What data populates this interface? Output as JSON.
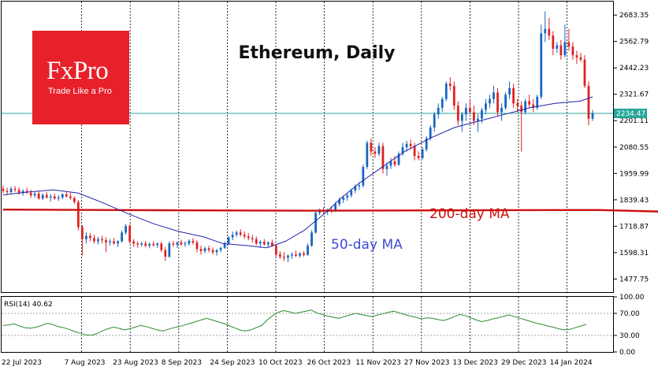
{
  "logo": {
    "word": "FxPro",
    "tagline": "Trade Like a Pro"
  },
  "chart_data": {
    "type": "candlestick",
    "title": "Ethereum, Daily",
    "price_axis": {
      "ticks": [
        "2683.35",
        "2562.79",
        "2442.23",
        "2321.67",
        "2201.11",
        "2080.55",
        "1959.99",
        "1839.43",
        "1718.87",
        "1598.31",
        "1477.75"
      ],
      "ylim": [
        1418,
        2745
      ]
    },
    "current_price_label": "2234.47",
    "x_labels": [
      "22 Jul 2023",
      "7 Aug 2023",
      "23 Aug 2023",
      "8 Sep 2023",
      "24 Sep 2023",
      "10 Oct 2023",
      "26 Oct 2023",
      "11 Nov 2023",
      "27 Nov 2023",
      "13 Dec 2023",
      "29 Dec 2023",
      "14 Jan 2024"
    ],
    "annotations": {
      "ma200": "200-day MA",
      "ma50": "50-day MA"
    },
    "grid": "vertical dashed",
    "colors": {
      "up": "#1565c0",
      "down": "#e02020",
      "ma50": "#2222aa",
      "ma200": "#cc1111",
      "rsi": "#2e8b2e",
      "price_line": "#26a69a"
    },
    "candles": [
      [
        1890,
        1905,
        1870,
        1880
      ],
      [
        1880,
        1895,
        1860,
        1875
      ],
      [
        1875,
        1900,
        1865,
        1890
      ],
      [
        1890,
        1902,
        1875,
        1885
      ],
      [
        1885,
        1898,
        1862,
        1870
      ],
      [
        1870,
        1888,
        1858,
        1880
      ],
      [
        1880,
        1895,
        1866,
        1872
      ],
      [
        1872,
        1885,
        1848,
        1860
      ],
      [
        1860,
        1878,
        1850,
        1868
      ],
      [
        1868,
        1880,
        1840,
        1845
      ],
      [
        1845,
        1870,
        1838,
        1862
      ],
      [
        1862,
        1875,
        1845,
        1850
      ],
      [
        1850,
        1866,
        1832,
        1855
      ],
      [
        1855,
        1868,
        1840,
        1845
      ],
      [
        1845,
        1862,
        1835,
        1850
      ],
      [
        1850,
        1870,
        1842,
        1865
      ],
      [
        1865,
        1878,
        1850,
        1855
      ],
      [
        1855,
        1872,
        1840,
        1848
      ],
      [
        1848,
        1855,
        1820,
        1830
      ],
      [
        1830,
        1838,
        1700,
        1715
      ],
      [
        1715,
        1725,
        1585,
        1660
      ],
      [
        1660,
        1690,
        1640,
        1675
      ],
      [
        1675,
        1688,
        1650,
        1665
      ],
      [
        1665,
        1680,
        1640,
        1650
      ],
      [
        1650,
        1670,
        1635,
        1660
      ],
      [
        1660,
        1675,
        1640,
        1655
      ],
      [
        1655,
        1668,
        1600,
        1645
      ],
      [
        1645,
        1660,
        1630,
        1650
      ],
      [
        1650,
        1665,
        1635,
        1640
      ],
      [
        1640,
        1655,
        1625,
        1650
      ],
      [
        1650,
        1700,
        1645,
        1690
      ],
      [
        1690,
        1730,
        1680,
        1720
      ],
      [
        1720,
        1728,
        1640,
        1650
      ],
      [
        1650,
        1660,
        1625,
        1640
      ],
      [
        1640,
        1650,
        1620,
        1635
      ],
      [
        1635,
        1648,
        1625,
        1640
      ],
      [
        1640,
        1652,
        1622,
        1630
      ],
      [
        1630,
        1645,
        1618,
        1638
      ],
      [
        1638,
        1650,
        1625,
        1632
      ],
      [
        1632,
        1645,
        1620,
        1640
      ],
      [
        1640,
        1648,
        1600,
        1610
      ],
      [
        1610,
        1625,
        1560,
        1580
      ],
      [
        1580,
        1650,
        1575,
        1640
      ],
      [
        1640,
        1652,
        1625,
        1635
      ],
      [
        1635,
        1650,
        1620,
        1645
      ],
      [
        1645,
        1658,
        1630,
        1636
      ],
      [
        1636,
        1650,
        1625,
        1640
      ],
      [
        1640,
        1660,
        1630,
        1652
      ],
      [
        1652,
        1665,
        1635,
        1645
      ],
      [
        1645,
        1655,
        1600,
        1615
      ],
      [
        1615,
        1630,
        1590,
        1605
      ],
      [
        1605,
        1625,
        1595,
        1618
      ],
      [
        1618,
        1630,
        1600,
        1610
      ],
      [
        1610,
        1622,
        1590,
        1600
      ],
      [
        1600,
        1615,
        1585,
        1610
      ],
      [
        1610,
        1625,
        1600,
        1620
      ],
      [
        1620,
        1650,
        1615,
        1640
      ],
      [
        1640,
        1675,
        1632,
        1668
      ],
      [
        1668,
        1695,
        1655,
        1680
      ],
      [
        1680,
        1700,
        1670,
        1690
      ],
      [
        1690,
        1705,
        1672,
        1680
      ],
      [
        1680,
        1695,
        1662,
        1672
      ],
      [
        1672,
        1688,
        1655,
        1665
      ],
      [
        1665,
        1680,
        1645,
        1660
      ],
      [
        1660,
        1672,
        1632,
        1640
      ],
      [
        1640,
        1655,
        1620,
        1648
      ],
      [
        1648,
        1660,
        1630,
        1636
      ],
      [
        1636,
        1650,
        1620,
        1645
      ],
      [
        1645,
        1658,
        1625,
        1630
      ],
      [
        1630,
        1638,
        1580,
        1590
      ],
      [
        1590,
        1605,
        1570,
        1580
      ],
      [
        1580,
        1600,
        1560,
        1575
      ],
      [
        1575,
        1590,
        1555,
        1585
      ],
      [
        1585,
        1600,
        1570,
        1590
      ],
      [
        1590,
        1608,
        1578,
        1584
      ],
      [
        1584,
        1600,
        1575,
        1595
      ],
      [
        1595,
        1605,
        1580,
        1588
      ],
      [
        1588,
        1640,
        1585,
        1630
      ],
      [
        1630,
        1700,
        1625,
        1690
      ],
      [
        1690,
        1790,
        1685,
        1780
      ],
      [
        1780,
        1800,
        1770,
        1792
      ],
      [
        1792,
        1805,
        1775,
        1785
      ],
      [
        1785,
        1800,
        1770,
        1795
      ],
      [
        1795,
        1810,
        1780,
        1790
      ],
      [
        1790,
        1830,
        1785,
        1820
      ],
      [
        1820,
        1850,
        1810,
        1840
      ],
      [
        1840,
        1860,
        1825,
        1850
      ],
      [
        1850,
        1870,
        1835,
        1860
      ],
      [
        1860,
        1890,
        1850,
        1882
      ],
      [
        1882,
        1910,
        1870,
        1900
      ],
      [
        1900,
        1920,
        1885,
        1905
      ],
      [
        1905,
        2000,
        1895,
        1990
      ],
      [
        1990,
        2110,
        1980,
        2100
      ],
      [
        2100,
        2120,
        2040,
        2060
      ],
      [
        2060,
        2080,
        2030,
        2050
      ],
      [
        2050,
        2100,
        2040,
        2085
      ],
      [
        2085,
        2100,
        1960,
        1980
      ],
      [
        1980,
        2010,
        1950,
        1995
      ],
      [
        1995,
        2030,
        1980,
        2015
      ],
      [
        2015,
        2040,
        1990,
        2000
      ],
      [
        2000,
        2060,
        1995,
        2050
      ],
      [
        2050,
        2100,
        2040,
        2080
      ],
      [
        2080,
        2110,
        2060,
        2095
      ],
      [
        2095,
        2115,
        2070,
        2085
      ],
      [
        2085,
        2100,
        2020,
        2040
      ],
      [
        2040,
        2060,
        2020,
        2030
      ],
      [
        2030,
        2080,
        2025,
        2070
      ],
      [
        2070,
        2130,
        2060,
        2120
      ],
      [
        2120,
        2180,
        2110,
        2170
      ],
      [
        2170,
        2240,
        2150,
        2230
      ],
      [
        2230,
        2280,
        2210,
        2260
      ],
      [
        2260,
        2310,
        2240,
        2300
      ],
      [
        2300,
        2380,
        2290,
        2370
      ],
      [
        2370,
        2400,
        2340,
        2360
      ],
      [
        2360,
        2380,
        2250,
        2270
      ],
      [
        2270,
        2290,
        2180,
        2200
      ],
      [
        2200,
        2240,
        2150,
        2230
      ],
      [
        2230,
        2280,
        2200,
        2260
      ],
      [
        2260,
        2300,
        2230,
        2240
      ],
      [
        2240,
        2270,
        2180,
        2200
      ],
      [
        2200,
        2230,
        2150,
        2210
      ],
      [
        2210,
        2260,
        2190,
        2250
      ],
      [
        2250,
        2300,
        2230,
        2280
      ],
      [
        2280,
        2320,
        2260,
        2300
      ],
      [
        2300,
        2360,
        2280,
        2330
      ],
      [
        2330,
        2350,
        2220,
        2240
      ],
      [
        2240,
        2280,
        2200,
        2260
      ],
      [
        2260,
        2330,
        2250,
        2320
      ],
      [
        2320,
        2380,
        2300,
        2350
      ],
      [
        2350,
        2370,
        2260,
        2280
      ],
      [
        2280,
        2300,
        2240,
        2270
      ],
      [
        2270,
        2290,
        2060,
        2240
      ],
      [
        2240,
        2300,
        2230,
        2290
      ],
      [
        2290,
        2320,
        2260,
        2275
      ],
      [
        2275,
        2300,
        2240,
        2260
      ],
      [
        2260,
        2320,
        2250,
        2310
      ],
      [
        2310,
        2640,
        2300,
        2600
      ],
      [
        2600,
        2700,
        2560,
        2620
      ],
      [
        2620,
        2670,
        2570,
        2590
      ],
      [
        2590,
        2610,
        2500,
        2530
      ],
      [
        2530,
        2560,
        2510,
        2545
      ],
      [
        2545,
        2570,
        2480,
        2500
      ],
      [
        2500,
        2640,
        2490,
        2560
      ],
      [
        2560,
        2620,
        2520,
        2540
      ],
      [
        2540,
        2560,
        2480,
        2500
      ],
      [
        2500,
        2520,
        2460,
        2490
      ],
      [
        2490,
        2510,
        2470,
        2480
      ],
      [
        2480,
        2500,
        2350,
        2360
      ],
      [
        2360,
        2380,
        2180,
        2210
      ],
      [
        2210,
        2250,
        2200,
        2234
      ]
    ],
    "sma200": [
      [
        0,
        1795
      ],
      [
        40,
        1792
      ],
      [
        80,
        1790
      ],
      [
        120,
        1792
      ],
      [
        150,
        1793
      ],
      [
        175,
        1782
      ],
      [
        190,
        1776
      ],
      [
        210,
        1782
      ],
      [
        230,
        1815
      ],
      [
        253,
        1905
      ]
    ],
    "sma50": [
      [
        0,
        1862
      ],
      [
        20,
        1875
      ],
      [
        40,
        1885
      ],
      [
        60,
        1870
      ],
      [
        80,
        1825
      ],
      [
        100,
        1775
      ],
      [
        120,
        1730
      ],
      [
        140,
        1695
      ],
      [
        160,
        1670
      ],
      [
        175,
        1640
      ],
      [
        195,
        1630
      ],
      [
        210,
        1620
      ],
      [
        225,
        1650
      ],
      [
        240,
        1700
      ],
      [
        257,
        1780
      ],
      [
        270,
        1850
      ],
      [
        285,
        1920
      ],
      [
        300,
        1980
      ],
      [
        320,
        2060
      ],
      [
        340,
        2120
      ],
      [
        360,
        2170
      ],
      [
        380,
        2200
      ],
      [
        400,
        2230
      ],
      [
        420,
        2260
      ],
      [
        440,
        2280
      ],
      [
        460,
        2290
      ],
      [
        470,
        2310
      ]
    ],
    "rsi": {
      "label": "RSI(14) 40.62",
      "ticks": [
        "100.00",
        "70.00",
        "30.00",
        "0.00"
      ],
      "values": [
        48,
        49,
        51,
        47,
        44,
        43,
        45,
        48,
        52,
        50,
        46,
        44,
        41,
        37,
        34,
        31,
        30,
        33,
        38,
        42,
        45,
        43,
        40,
        42,
        45,
        48,
        46,
        43,
        40,
        38,
        41,
        44,
        46,
        49,
        52,
        55,
        58,
        61,
        58,
        55,
        52,
        48,
        44,
        40,
        38,
        40,
        44,
        48,
        58,
        66,
        72,
        75,
        73,
        70,
        72,
        74,
        76,
        71,
        68,
        65,
        63,
        61,
        64,
        67,
        70,
        68,
        66,
        64,
        67,
        69,
        72,
        74,
        71,
        68,
        65,
        63,
        60,
        62,
        61,
        59,
        57,
        60,
        64,
        68,
        66,
        62,
        58,
        55,
        57,
        60,
        62,
        65,
        67,
        64,
        61,
        58,
        55,
        52,
        50,
        47,
        45,
        42,
        40,
        41,
        44,
        47,
        50
      ]
    }
  }
}
